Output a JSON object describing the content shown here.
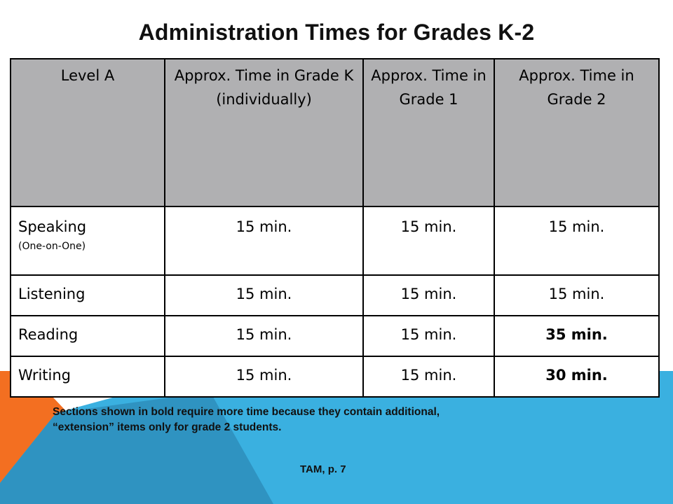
{
  "slide": {
    "title": "Administration Times for Grades K-2",
    "note_line1": "Sections shown in bold require more time because they contain additional,",
    "note_line2": "“extension” items only for grade 2 students.",
    "source": "TAM, p. 7"
  },
  "table": {
    "headers": [
      "Level A",
      "Approx. Time in Grade K (individually)",
      "Approx. Time in Grade 1",
      "Approx. Time in Grade 2"
    ],
    "rows": [
      {
        "label": "Speaking",
        "sublabel": "(One-on-One)",
        "k": "15 min.",
        "g1": "15 min.",
        "g2": "15 min."
      },
      {
        "label": "Listening",
        "k": "15 min.",
        "g1": "15 min.",
        "g2": "15 min."
      },
      {
        "label": "Reading",
        "k": "15 min.",
        "g1": "15 min.",
        "g2": "35 min."
      },
      {
        "label": "Writing",
        "k": "15 min.",
        "g1": "15 min.",
        "g2": "30 min."
      }
    ]
  },
  "theme": {
    "orange": "#f36f21",
    "light_blue": "#3ab0e0",
    "mid_blue": "#2f93c1",
    "header_gray": "#b0b0b2"
  }
}
